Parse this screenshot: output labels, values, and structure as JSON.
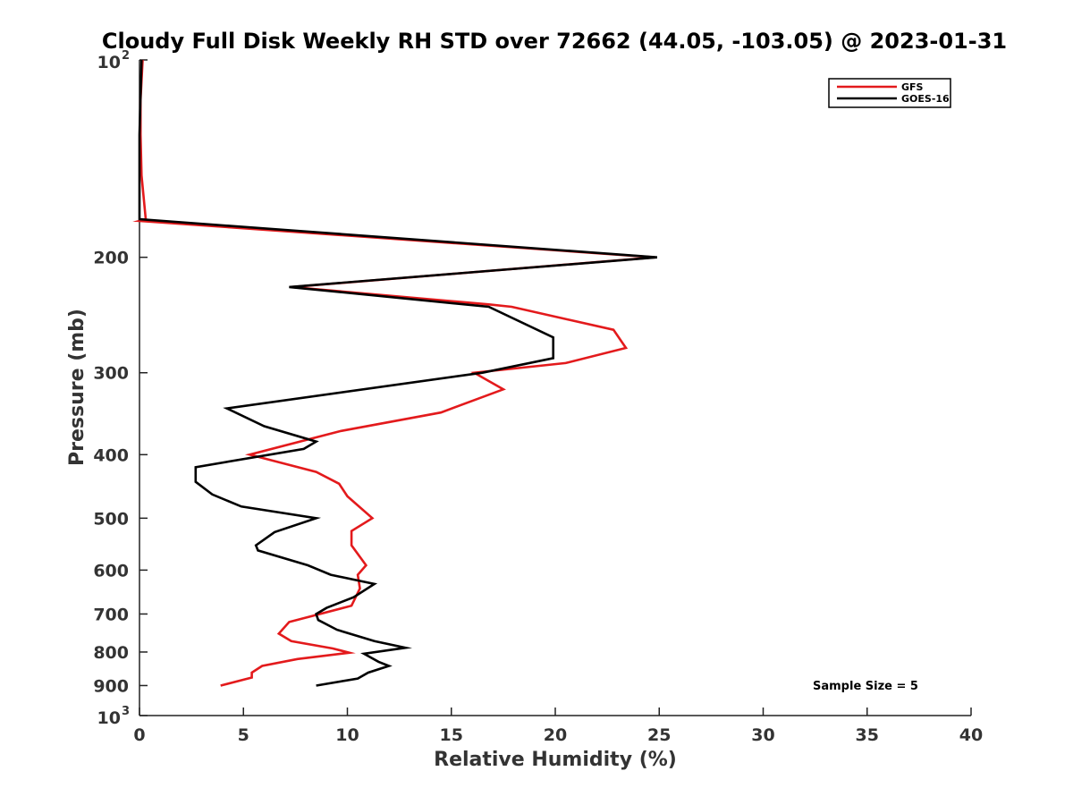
{
  "chart_data": {
    "type": "line",
    "title": "Cloudy Full Disk Weekly RH STD over 72662 (44.05, -103.05) @ 2023-01-31",
    "xlabel": "Relative Humidity (%)",
    "ylabel": "Pressure (mb)",
    "xlim": [
      0,
      40
    ],
    "ylim": [
      1000,
      100
    ],
    "y_scale": "log",
    "y_reversed": true,
    "x_ticks": [
      "0",
      "5",
      "10",
      "15",
      "20",
      "25",
      "30",
      "35",
      "40"
    ],
    "y_ticks": [
      {
        "value": 100,
        "base": "10",
        "exp": "2"
      },
      {
        "value": 200,
        "label": "200"
      },
      {
        "value": 300,
        "label": "300"
      },
      {
        "value": 400,
        "label": "400"
      },
      {
        "value": 500,
        "label": "500"
      },
      {
        "value": 600,
        "label": "600"
      },
      {
        "value": 700,
        "label": "700"
      },
      {
        "value": 800,
        "label": "800"
      },
      {
        "value": 900,
        "label": "900"
      },
      {
        "value": 1000,
        "base": "10",
        "exp": "3"
      }
    ],
    "grid": false,
    "legend_position": "top-right",
    "annotation": "Sample Size = 5",
    "series": [
      {
        "name": "GFS",
        "color": "#e31a1c",
        "points": [
          [
            0.15,
            100
          ],
          [
            0.05,
            115
          ],
          [
            0.05,
            130
          ],
          [
            0.1,
            150
          ],
          [
            0.3,
            175
          ],
          [
            0.0,
            176
          ],
          [
            24.8,
            200
          ],
          [
            7.3,
            222
          ],
          [
            16.8,
            236
          ],
          [
            17.9,
            238
          ],
          [
            22.8,
            258
          ],
          [
            23.4,
            275
          ],
          [
            20.5,
            290
          ],
          [
            16.1,
            300
          ],
          [
            17.5,
            318
          ],
          [
            14.5,
            345
          ],
          [
            9.7,
            368
          ],
          [
            5.3,
            400
          ],
          [
            8.5,
            425
          ],
          [
            9.6,
            443
          ],
          [
            10.0,
            463
          ],
          [
            11.2,
            500
          ],
          [
            10.2,
            523
          ],
          [
            10.2,
            550
          ],
          [
            10.9,
            590
          ],
          [
            10.5,
            610
          ],
          [
            10.6,
            640
          ],
          [
            10.2,
            680
          ],
          [
            7.2,
            720
          ],
          [
            6.7,
            750
          ],
          [
            7.3,
            770
          ],
          [
            9.3,
            790
          ],
          [
            10.1,
            802
          ],
          [
            7.6,
            820
          ],
          [
            5.9,
            840
          ],
          [
            5.4,
            860
          ],
          [
            5.4,
            875
          ],
          [
            3.9,
            900
          ]
        ]
      },
      {
        "name": "GOES-16",
        "color": "#000000",
        "points": [
          [
            0.1,
            100
          ],
          [
            0.0,
            130
          ],
          [
            0.0,
            175
          ],
          [
            24.9,
            200
          ],
          [
            7.2,
            222
          ],
          [
            16.8,
            238
          ],
          [
            19.9,
            265
          ],
          [
            19.9,
            285
          ],
          [
            16.5,
            300
          ],
          [
            4.2,
            340
          ],
          [
            6.0,
            362
          ],
          [
            8.5,
            382
          ],
          [
            7.9,
            392
          ],
          [
            2.7,
            418
          ],
          [
            2.7,
            440
          ],
          [
            3.5,
            460
          ],
          [
            4.9,
            480
          ],
          [
            8.5,
            500
          ],
          [
            6.5,
            525
          ],
          [
            5.6,
            550
          ],
          [
            5.7,
            560
          ],
          [
            8.1,
            590
          ],
          [
            9.2,
            610
          ],
          [
            11.3,
            630
          ],
          [
            10.3,
            660
          ],
          [
            9.0,
            685
          ],
          [
            8.5,
            700
          ],
          [
            8.6,
            715
          ],
          [
            9.5,
            740
          ],
          [
            11.3,
            770
          ],
          [
            12.8,
            788
          ],
          [
            10.8,
            805
          ],
          [
            11.5,
            828
          ],
          [
            12.0,
            840
          ],
          [
            11.0,
            860
          ],
          [
            10.5,
            878
          ],
          [
            8.5,
            900
          ]
        ]
      }
    ]
  }
}
